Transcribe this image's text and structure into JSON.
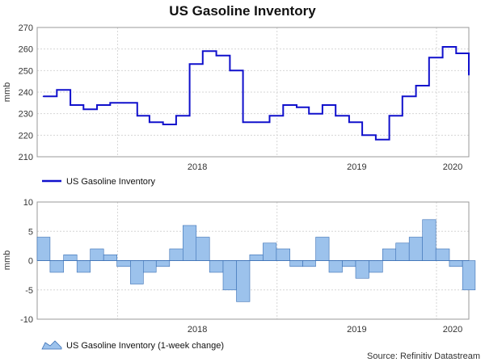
{
  "title": "US Gasoline Inventory",
  "source": "Source: Refinitiv Datastream",
  "chart_data": [
    {
      "type": "line",
      "ylabel": "mmb",
      "ylim": [
        210,
        270
      ],
      "yticks": [
        210,
        220,
        230,
        240,
        250,
        260,
        270
      ],
      "year_ticks": [
        "2018",
        "2019",
        "2020"
      ],
      "legend": "US Gasoline Inventory",
      "legend_position": "bottom-left",
      "color": "#1010cc",
      "grid": true,
      "x": [
        "2017-07",
        "2017-08",
        "2017-09",
        "2017-10",
        "2017-11",
        "2017-12",
        "2018-01",
        "2018-02",
        "2018-03",
        "2018-04",
        "2018-05",
        "2018-06",
        "2018-07",
        "2018-08",
        "2018-09",
        "2018-10",
        "2018-11",
        "2018-12",
        "2019-01",
        "2019-02",
        "2019-03",
        "2019-04",
        "2019-05",
        "2019-06",
        "2019-07",
        "2019-08",
        "2019-09",
        "2019-10",
        "2019-11",
        "2019-12",
        "2020-01",
        "2020-02",
        "2020-03"
      ],
      "values": [
        238,
        241,
        234,
        232,
        234,
        235,
        235,
        229,
        226,
        225,
        229,
        253,
        259,
        257,
        250,
        226,
        226,
        229,
        234,
        233,
        230,
        234,
        229,
        226,
        220,
        218,
        229,
        238,
        243,
        256,
        261,
        258,
        248
      ]
    },
    {
      "type": "area",
      "ylabel": "mmb",
      "ylim": [
        -10,
        10
      ],
      "yticks": [
        -10,
        -5,
        0,
        5,
        10
      ],
      "year_ticks": [
        "2018",
        "2019",
        "2020"
      ],
      "legend": "US Gasoline Inventory (1-week change)",
      "legend_position": "bottom-left",
      "color": "#9cc2ec",
      "grid": true,
      "x": [
        "2017-07",
        "2017-08",
        "2017-09",
        "2017-10",
        "2017-11",
        "2017-12",
        "2018-01",
        "2018-02",
        "2018-03",
        "2018-04",
        "2018-05",
        "2018-06",
        "2018-07",
        "2018-08",
        "2018-09",
        "2018-10",
        "2018-11",
        "2018-12",
        "2019-01",
        "2019-02",
        "2019-03",
        "2019-04",
        "2019-05",
        "2019-06",
        "2019-07",
        "2019-08",
        "2019-09",
        "2019-10",
        "2019-11",
        "2019-12",
        "2020-01",
        "2020-02",
        "2020-03"
      ],
      "values": [
        4,
        -2,
        1,
        -2,
        2,
        1,
        -1,
        -4,
        -2,
        -1,
        2,
        6,
        4,
        -2,
        -5,
        -7,
        1,
        3,
        2,
        -1,
        -1,
        4,
        -2,
        -1,
        -3,
        -2,
        2,
        3,
        4,
        7,
        2,
        -1,
        -5
      ]
    }
  ]
}
